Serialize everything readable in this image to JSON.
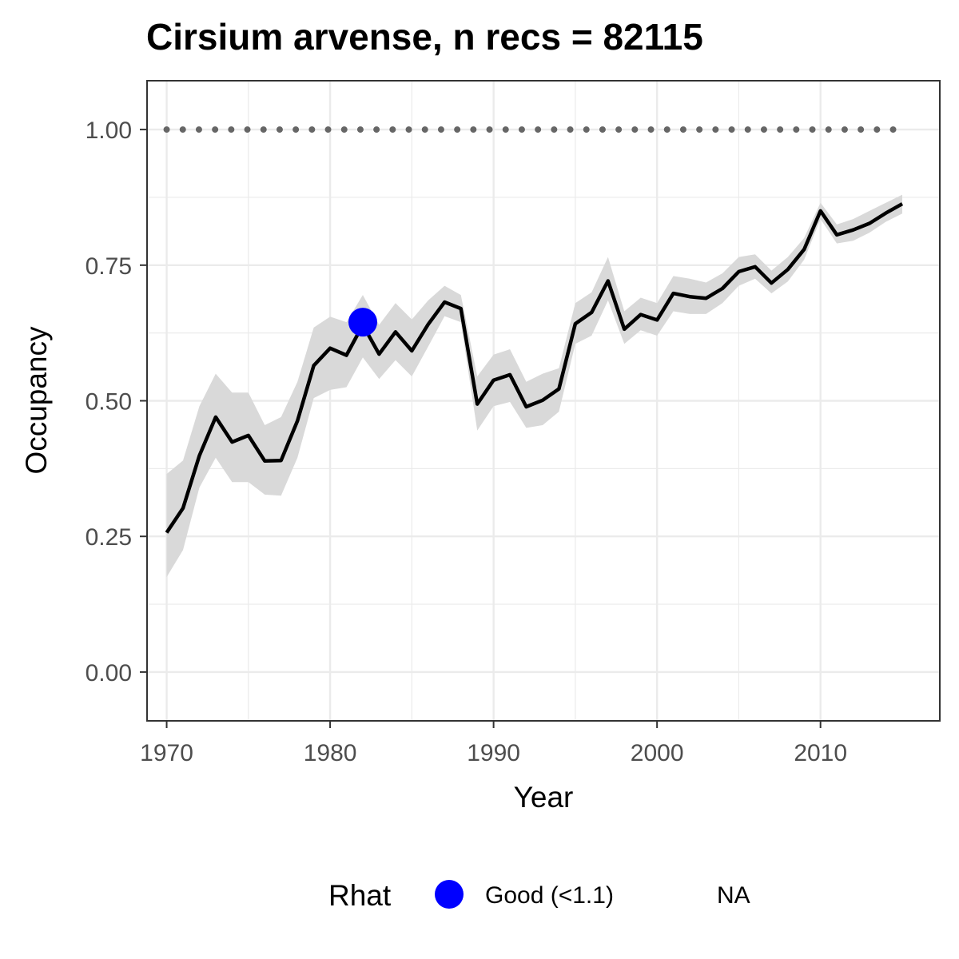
{
  "chart_data": {
    "type": "line",
    "title": "Cirsium arvense, n recs = 82115",
    "xlabel": "Year",
    "ylabel": "Occupancy",
    "xlim": [
      1968.8,
      2017.3
    ],
    "ylim": [
      -0.09,
      1.09
    ],
    "x_ticks": [
      1970,
      1980,
      1990,
      2000,
      2010
    ],
    "x_tick_labels": [
      "1970",
      "1980",
      "1990",
      "2000",
      "2010"
    ],
    "y_ticks": [
      0,
      0.25,
      0.5,
      0.75,
      1.0
    ],
    "y_tick_labels": [
      "0.00",
      "0.25",
      "0.50",
      "0.75",
      "1.00"
    ],
    "grid": true,
    "x": [
      1970,
      1971,
      1972,
      1973,
      1974,
      1975,
      1976,
      1977,
      1978,
      1979,
      1980,
      1981,
      1982,
      1983,
      1984,
      1985,
      1986,
      1987,
      1988,
      1989,
      1990,
      1991,
      1992,
      1993,
      1994,
      1995,
      1996,
      1997,
      1998,
      1999,
      2000,
      2001,
      2002,
      2003,
      2004,
      2005,
      2006,
      2007,
      2008,
      2009,
      2010,
      2011,
      2012,
      2013,
      2014,
      2015
    ],
    "series": [
      {
        "values": [
          0.257,
          0.302,
          0.399,
          0.47,
          0.424,
          0.436,
          0.389,
          0.39,
          0.463,
          0.565,
          0.597,
          0.584,
          0.64,
          0.586,
          0.627,
          0.592,
          0.641,
          0.682,
          0.67,
          0.494,
          0.538,
          0.548,
          0.489,
          0.501,
          0.522,
          0.642,
          0.663,
          0.721,
          0.632,
          0.659,
          0.649,
          0.698,
          0.692,
          0.689,
          0.707,
          0.738,
          0.747,
          0.717,
          0.742,
          0.779,
          0.85,
          0.806,
          0.815,
          0.827,
          0.846,
          0.863
        ],
        "lower": [
          0.175,
          0.225,
          0.34,
          0.395,
          0.35,
          0.35,
          0.327,
          0.325,
          0.395,
          0.505,
          0.52,
          0.525,
          0.58,
          0.54,
          0.575,
          0.545,
          0.6,
          0.656,
          0.645,
          0.445,
          0.49,
          0.498,
          0.45,
          0.455,
          0.48,
          0.605,
          0.62,
          0.685,
          0.605,
          0.63,
          0.62,
          0.665,
          0.66,
          0.66,
          0.68,
          0.712,
          0.725,
          0.698,
          0.72,
          0.76,
          0.835,
          0.79,
          0.795,
          0.81,
          0.83,
          0.845
        ],
        "upper": [
          0.365,
          0.39,
          0.49,
          0.55,
          0.515,
          0.515,
          0.455,
          0.47,
          0.535,
          0.635,
          0.655,
          0.645,
          0.695,
          0.64,
          0.68,
          0.65,
          0.685,
          0.712,
          0.695,
          0.545,
          0.585,
          0.595,
          0.535,
          0.55,
          0.56,
          0.68,
          0.7,
          0.765,
          0.665,
          0.69,
          0.68,
          0.73,
          0.725,
          0.718,
          0.735,
          0.765,
          0.77,
          0.74,
          0.765,
          0.8,
          0.865,
          0.825,
          0.835,
          0.85,
          0.865,
          0.88
        ],
        "color": "#000000",
        "ribbon_color": "#d9d9d9"
      },
      {
        "type": "dotted-line",
        "x_range": [
          1970,
          2015
        ],
        "value": 1.0,
        "color": "#666666"
      }
    ],
    "highlight_points": [
      {
        "x": 1982,
        "y": 0.645,
        "color": "#0000ff",
        "category": "Good (<1.1)"
      }
    ],
    "legend": {
      "title": "Rhat",
      "placement": "bottom",
      "entries": [
        {
          "label": "Good (<1.1)",
          "color": "#0000ff"
        },
        {
          "label": "NA"
        }
      ]
    }
  }
}
